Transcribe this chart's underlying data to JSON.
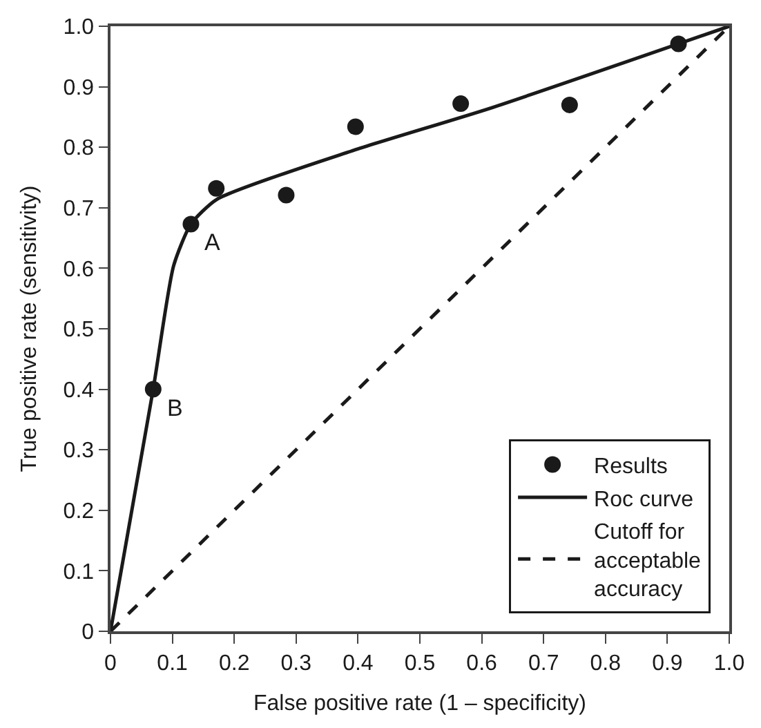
{
  "chart_data": {
    "type": "scatter",
    "xlabel": "False positive rate (1 – specificity)",
    "ylabel": "True positive rate (sensitivity)",
    "series": [
      {
        "name": "Results",
        "marker": "circle",
        "color": "#1a1a1a",
        "x": [
          0.069,
          0.13,
          0.171,
          0.284,
          0.396,
          0.566,
          0.742,
          0.918
        ],
        "values": [
          0.4,
          0.673,
          0.732,
          0.721,
          0.834,
          0.872,
          0.87,
          0.971
        ]
      },
      {
        "name": "Roc curve",
        "type": "line",
        "marker": "none",
        "line_style": "solid",
        "color": "#1a1a1a",
        "x": [
          0,
          0.069,
          0.102,
          0.13,
          0.172,
          0.393,
          0.615,
          1.0
        ],
        "values": [
          0,
          0.4,
          0.604,
          0.673,
          0.714,
          0.795,
          0.865,
          1.0
        ]
      },
      {
        "name": "Cutoff for acceptable accuracy",
        "type": "line",
        "marker": "none",
        "line_style": "dashed",
        "color": "#1a1a1a",
        "x": [
          0,
          1.0
        ],
        "values": [
          0,
          1.0
        ]
      }
    ],
    "annotations": [
      {
        "text": "A",
        "x": 0.13,
        "y": 0.673
      },
      {
        "text": "B",
        "x": 0.069,
        "y": 0.4
      }
    ],
    "xlim": [
      0,
      1.0
    ],
    "ylim": [
      0,
      1.0
    ],
    "xticks": [
      0,
      0.1,
      0.2,
      0.3,
      0.4,
      0.5,
      0.6,
      0.7,
      0.8,
      0.9,
      {
        "value": 1,
        "label": "1.0"
      }
    ],
    "yticks": [
      0,
      0.1,
      0.2,
      0.3,
      0.4,
      0.5,
      0.6,
      0.7,
      0.8,
      0.9,
      {
        "value": 1,
        "label": "1.0"
      }
    ],
    "grid": false,
    "legend": "bottom right"
  }
}
